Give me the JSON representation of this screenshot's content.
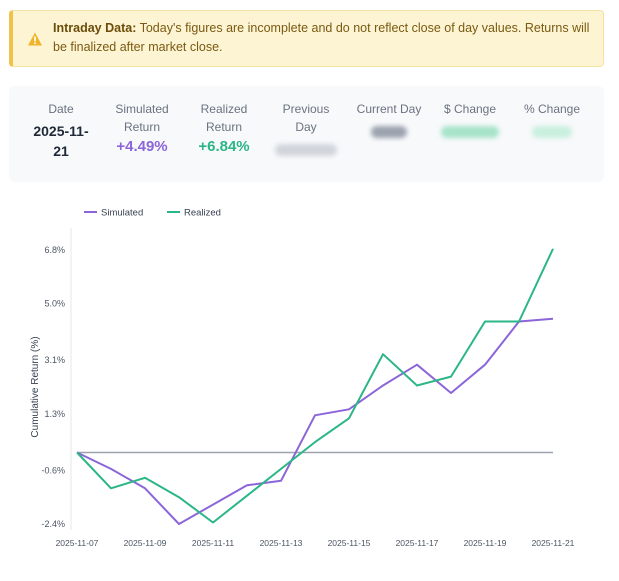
{
  "alert": {
    "title": "Intraday Data:",
    "message": "Today's figures are incomplete and do not reflect close of day values. Returns will be finalized after market close.",
    "icon": "warning-icon"
  },
  "stats": {
    "date_label": "Date",
    "date_line1": "2025-11-",
    "date_line2": "21",
    "simulated_label_1": "Simulated",
    "simulated_label_2": "Return",
    "simulated_value": "+4.49%",
    "realized_label_1": "Realized",
    "realized_label_2": "Return",
    "realized_value": "+6.84%",
    "previous_label_1": "Previous",
    "previous_label_2": "Day",
    "current_label": "Current Day",
    "dollar_change_label": "$ Change",
    "pct_change_label": "% Change"
  },
  "colors": {
    "simulated": "#8c65d8",
    "realized": "#2bb686",
    "baseline": "#9ca3af"
  },
  "chart_data": {
    "type": "line",
    "ylabel": "Cumulative Return (%)",
    "x": [
      "2025-11-07",
      "2025-11-08",
      "2025-11-09",
      "2025-11-10",
      "2025-11-11",
      "2025-11-12",
      "2025-11-13",
      "2025-11-14",
      "2025-11-15",
      "2025-11-16",
      "2025-11-17",
      "2025-11-18",
      "2025-11-19",
      "2025-11-20",
      "2025-11-21"
    ],
    "x_tick_labels": [
      "2025-11-07",
      "2025-11-09",
      "2025-11-11",
      "2025-11-13",
      "2025-11-15",
      "2025-11-17",
      "2025-11-19",
      "2025-11-21"
    ],
    "y_tick_labels": [
      "6.8%",
      "5.0%",
      "3.1%",
      "1.3%",
      "-0.6%",
      "-2.4%"
    ],
    "y_ticks": [
      6.8,
      5.0,
      3.1,
      1.3,
      -0.6,
      -2.4
    ],
    "ylim": [
      -2.4,
      6.8
    ],
    "baseline": 0,
    "legend_position": "top-left",
    "series": [
      {
        "name": "Simulated",
        "values": [
          0.0,
          -0.55,
          -1.2,
          -2.4,
          -1.75,
          -1.1,
          -0.95,
          1.25,
          1.45,
          2.25,
          2.95,
          2.0,
          2.95,
          4.4,
          4.49
        ]
      },
      {
        "name": "Realized",
        "values": [
          0.0,
          -1.2,
          -0.85,
          -1.5,
          -2.35,
          -1.45,
          -0.55,
          0.35,
          1.15,
          3.3,
          2.25,
          2.55,
          4.4,
          4.4,
          6.84
        ]
      }
    ]
  }
}
